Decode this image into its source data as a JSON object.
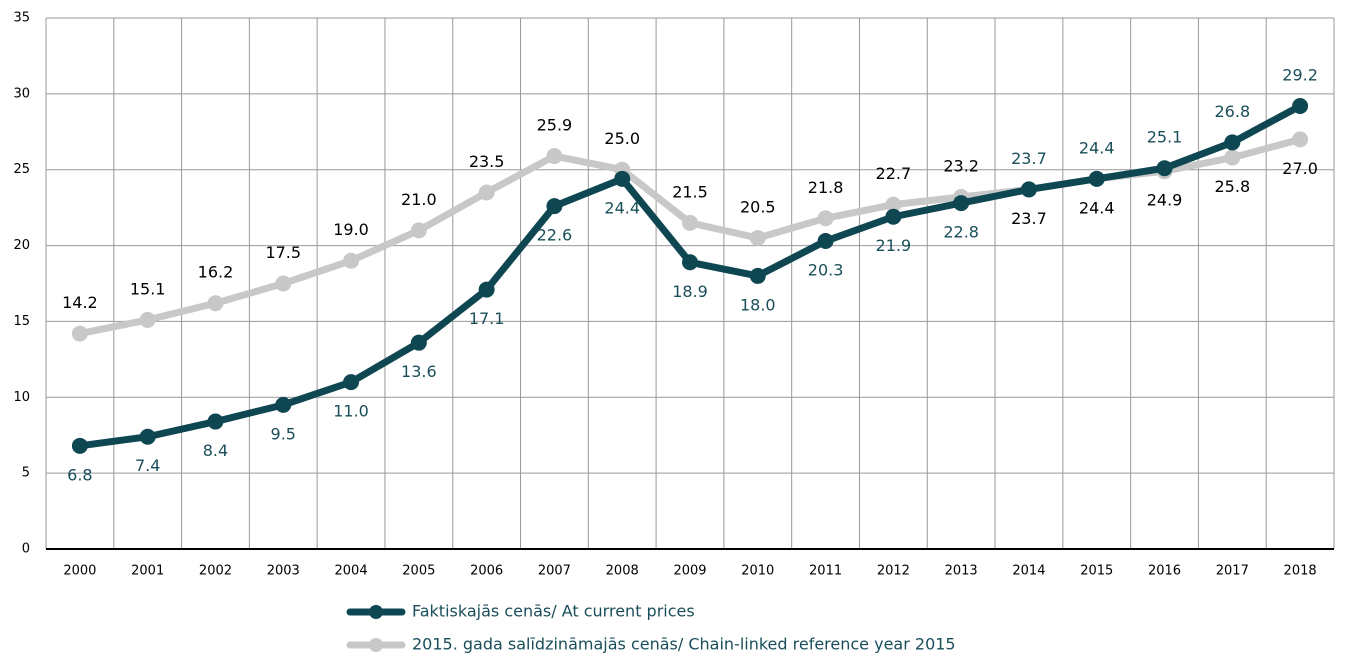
{
  "chart_data": {
    "type": "line",
    "categories": [
      "2000",
      "2001",
      "2002",
      "2003",
      "2004",
      "2005",
      "2006",
      "2007",
      "2008",
      "2009",
      "2010",
      "2011",
      "2012",
      "2013",
      "2014",
      "2015",
      "2016",
      "2017",
      "2018"
    ],
    "series": [
      {
        "name": "Faktiskajās cenās/ At current prices",
        "color": "#0e4752",
        "values": [
          6.8,
          7.4,
          8.4,
          9.5,
          11.0,
          13.6,
          17.1,
          22.6,
          24.4,
          18.9,
          18.0,
          20.3,
          21.9,
          22.8,
          23.7,
          24.4,
          25.1,
          26.8,
          29.2
        ],
        "value_labels": [
          "6.8",
          "7.4",
          "8.4",
          "9.5",
          "11.0",
          "13.6",
          "17.1",
          "22.6",
          "24.4",
          "18.9",
          "18.0",
          "20.3",
          "21.9",
          "22.8",
          "23.7",
          "24.4",
          "25.1",
          "26.8",
          "29.2"
        ]
      },
      {
        "name": "2015. gada salīdzināmajās cenās/ Chain-linked reference year 2015",
        "color": "#c8c8c8",
        "values": [
          14.2,
          15.1,
          16.2,
          17.5,
          19.0,
          21.0,
          23.5,
          25.9,
          25.0,
          21.5,
          20.5,
          21.8,
          22.7,
          23.2,
          23.7,
          24.4,
          24.9,
          25.8,
          27.0
        ],
        "value_labels": [
          "14.2",
          "15.1",
          "16.2",
          "17.5",
          "19.0",
          "21.0",
          "23.5",
          "25.9",
          "25.0",
          "21.5",
          "20.5",
          "21.8",
          "22.7",
          "23.2",
          "23.7",
          "24.4",
          "24.9",
          "25.8",
          "27.0"
        ]
      }
    ],
    "ylim": [
      0,
      35
    ],
    "yticks": [
      0,
      5,
      10,
      15,
      20,
      25,
      30,
      35
    ],
    "grid": true
  }
}
